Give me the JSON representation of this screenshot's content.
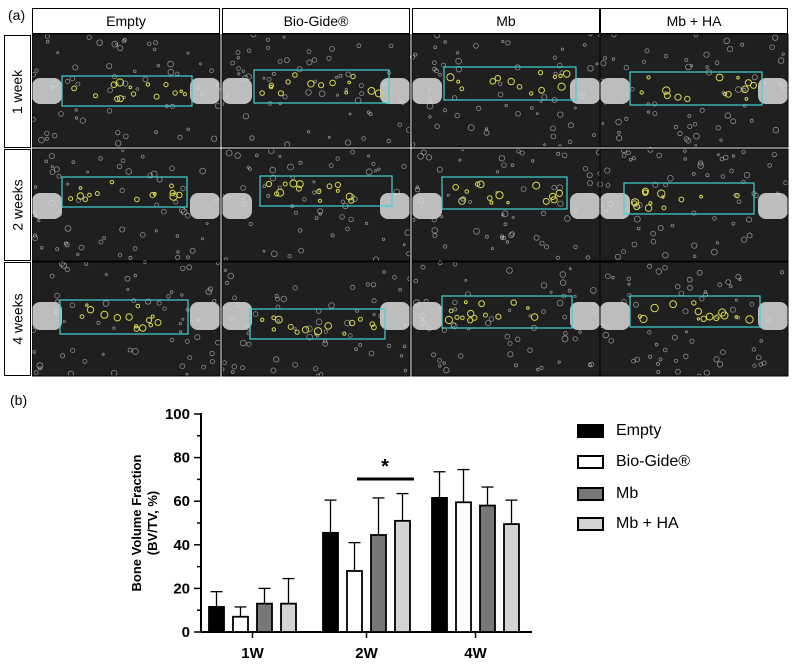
{
  "panel_a": {
    "label": "(a)",
    "columns": [
      "Empty",
      "Bio-Gide®",
      "Mb",
      "Mb + HA"
    ],
    "rows": [
      "1 week",
      "2 weeks",
      "4 weeks"
    ],
    "colors": {
      "roi_box": "#3fd3d3",
      "new_bone": "#d8d84a",
      "bone_contour": "#e6e6e6",
      "background": "#1f1f1f"
    }
  },
  "panel_b": {
    "label": "(b)"
  },
  "chart_data": {
    "type": "bar",
    "categories": [
      "1W",
      "2W",
      "4W"
    ],
    "ylabel": "Bone Volume Fraction (BV/TV, %)",
    "ylabel_lines": [
      "Bone Volume Fraction",
      "(BV/TV, %)"
    ],
    "ylim": [
      0,
      100
    ],
    "yticks": [
      0,
      20,
      40,
      60,
      80,
      100
    ],
    "series": [
      {
        "name": "Empty",
        "values": [
          11.5,
          45.5,
          61.5
        ],
        "errors": [
          7,
          15,
          12
        ],
        "color": "#000000"
      },
      {
        "name": "Bio-Gide®",
        "values": [
          7,
          28,
          59.5
        ],
        "errors": [
          4.5,
          13,
          15
        ],
        "color": "#ffffff"
      },
      {
        "name": "Mb",
        "values": [
          13,
          44.5,
          58
        ],
        "errors": [
          7,
          17,
          8.5
        ],
        "color": "#777777"
      },
      {
        "name": "Mb + HA",
        "values": [
          13,
          51,
          49.5
        ],
        "errors": [
          11.5,
          12.5,
          11
        ],
        "color": "#d3d3d3"
      }
    ],
    "significance": {
      "label": "*",
      "category": "2W"
    },
    "legend_position": "right"
  }
}
